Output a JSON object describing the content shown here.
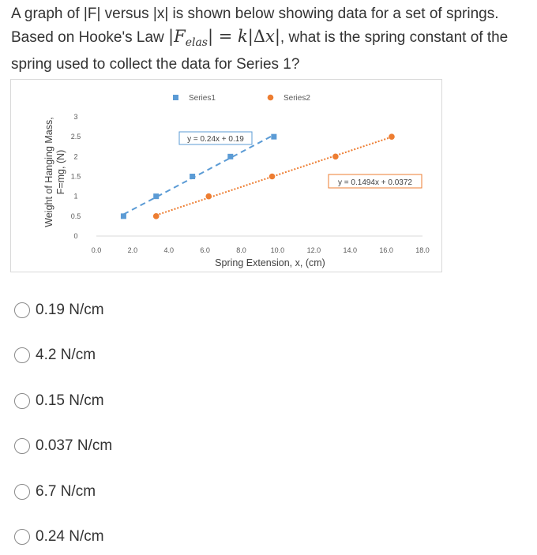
{
  "question": {
    "text_before": "A graph of |F| versus |x| is shown below showing data for a set of springs. Based on Hooke's Law ",
    "formula": "|Felas| = k|Δx|",
    "text_after": ", what is the spring constant of the spring used to collect the data for Series 1?"
  },
  "chart_data": {
    "type": "scatter",
    "xlabel": "Spring Extension, x, (cm)",
    "ylabel_line1": "Weight of Hanging Mass,",
    "ylabel_line2": "F=mg, (N)",
    "xlim": [
      0,
      18
    ],
    "ylim": [
      0,
      3
    ],
    "x_ticks": [
      "0.0",
      "2.0",
      "4.0",
      "6.0",
      "8.0",
      "10.0",
      "12.0",
      "14.0",
      "16.0",
      "18.0"
    ],
    "y_ticks": [
      "0",
      "0.5",
      "1",
      "1.5",
      "2",
      "2.5",
      "3"
    ],
    "grid": false,
    "legend_position": "top",
    "series": [
      {
        "name": "Series1",
        "color": "#5b9bd5",
        "marker": "square",
        "x": [
          1.5,
          3.3,
          5.3,
          7.4,
          9.8
        ],
        "y": [
          0.5,
          1.0,
          1.5,
          2.0,
          2.5
        ],
        "trendline_label": "y = 0.24x + 0.19",
        "trendline_color": "#5b9bd5"
      },
      {
        "name": "Series2",
        "color": "#ed7d31",
        "marker": "circle",
        "x": [
          3.3,
          6.2,
          9.7,
          13.2,
          16.3
        ],
        "y": [
          0.5,
          1.0,
          1.5,
          2.0,
          2.5
        ],
        "trendline_label": "y = 0.1494x + 0.0372",
        "trendline_color": "#ed7d31"
      }
    ]
  },
  "options": [
    {
      "label": "0.19 N/cm"
    },
    {
      "label": "4.2 N/cm"
    },
    {
      "label": "0.15 N/cm"
    },
    {
      "label": "0.037 N/cm"
    },
    {
      "label": "6.7 N/cm"
    },
    {
      "label": "0.24 N/cm"
    }
  ]
}
